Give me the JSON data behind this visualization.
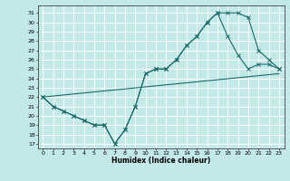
{
  "xlabel": "Humidex (Indice chaleur)",
  "bg_color": "#c2e8e8",
  "grid_color": "#ffffff",
  "line_color": "#1a6b6b",
  "xlim": [
    -0.5,
    23.5
  ],
  "ylim": [
    16.5,
    31.8
  ],
  "yticks": [
    17,
    18,
    19,
    20,
    21,
    22,
    23,
    24,
    25,
    26,
    27,
    28,
    29,
    30,
    31
  ],
  "xticks": [
    0,
    1,
    2,
    3,
    4,
    5,
    6,
    7,
    8,
    9,
    10,
    11,
    12,
    13,
    14,
    15,
    16,
    17,
    18,
    19,
    20,
    21,
    22,
    23
  ],
  "line1_x": [
    0,
    1,
    2,
    3,
    4,
    5,
    6,
    7,
    8,
    9,
    10,
    11,
    12,
    13,
    14,
    15,
    16,
    17,
    18,
    19,
    20,
    21,
    22,
    23
  ],
  "line1_y": [
    22,
    21,
    20.5,
    20,
    19.5,
    19,
    19,
    17,
    18.5,
    21,
    24.5,
    25,
    25,
    26,
    27.5,
    28.5,
    30,
    31,
    31,
    31,
    30.5,
    27,
    26,
    25
  ],
  "line2_x": [
    0,
    1,
    2,
    3,
    4,
    5,
    6,
    7,
    8,
    9,
    10,
    11,
    12,
    13,
    14,
    15,
    16,
    17,
    18,
    19,
    20,
    21,
    22,
    23
  ],
  "line2_y": [
    22,
    21,
    20.5,
    20,
    19.5,
    19,
    19,
    17,
    18.5,
    21,
    24.5,
    25,
    25,
    26,
    27.5,
    28.5,
    30,
    31,
    28.5,
    26.5,
    25,
    25.5,
    25.5,
    25
  ],
  "line3_x": [
    0,
    23
  ],
  "line3_y": [
    22,
    24.5
  ]
}
